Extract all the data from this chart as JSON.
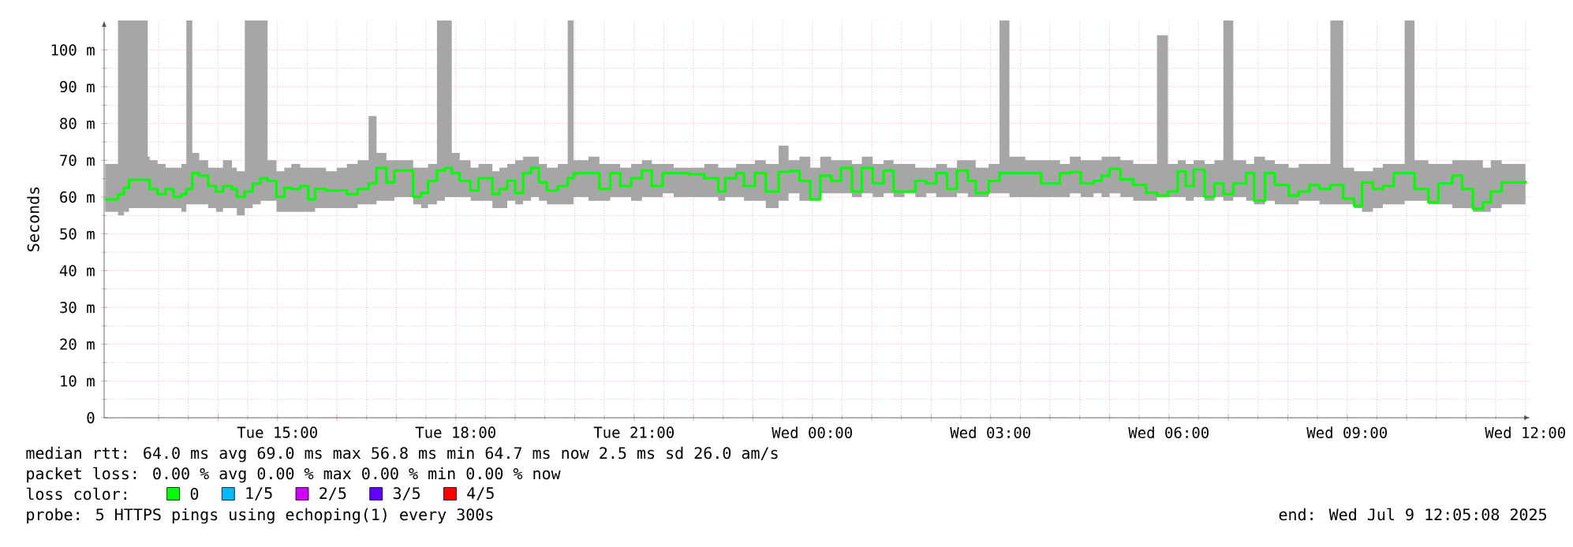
{
  "chart_data": {
    "type": "step",
    "ylabel": "Seconds",
    "legend_title": "loss color:",
    "legend": "bottom",
    "grid": true,
    "xlim": [
      "2025-07-08T12:05",
      "2025-07-09T12:05"
    ],
    "ylim": [
      0,
      108
    ],
    "xticks": [
      {
        "value": "2025-07-08T13:00",
        "label": null
      },
      {
        "value": "2025-07-08T14:00",
        "label": null
      },
      {
        "value": "2025-07-08T15:00",
        "label": "Tue 15:00"
      },
      {
        "value": "2025-07-08T16:00",
        "label": null
      },
      {
        "value": "2025-07-08T17:00",
        "label": null
      },
      {
        "value": "2025-07-08T18:00",
        "label": "Tue 18:00"
      },
      {
        "value": "2025-07-08T19:00",
        "label": null
      },
      {
        "value": "2025-07-08T20:00",
        "label": null
      },
      {
        "value": "2025-07-08T21:00",
        "label": "Tue 21:00"
      },
      {
        "value": "2025-07-08T22:00",
        "label": null
      },
      {
        "value": "2025-07-08T23:00",
        "label": null
      },
      {
        "value": "2025-07-09T00:00",
        "label": "Wed 00:00"
      },
      {
        "value": "2025-07-09T01:00",
        "label": null
      },
      {
        "value": "2025-07-09T02:00",
        "label": null
      },
      {
        "value": "2025-07-09T03:00",
        "label": "Wed 03:00"
      },
      {
        "value": "2025-07-09T04:00",
        "label": null
      },
      {
        "value": "2025-07-09T05:00",
        "label": null
      },
      {
        "value": "2025-07-09T06:00",
        "label": "Wed 06:00"
      },
      {
        "value": "2025-07-09T07:00",
        "label": null
      },
      {
        "value": "2025-07-09T08:00",
        "label": null
      },
      {
        "value": "2025-07-09T09:00",
        "label": "Wed 09:00"
      },
      {
        "value": "2025-07-09T10:00",
        "label": null
      },
      {
        "value": "2025-07-09T11:00",
        "label": null
      },
      {
        "value": "2025-07-09T12:00",
        "label": "Wed 12:00"
      }
    ],
    "yticks": [
      0,
      {
        "value": 10,
        "label": "10 m"
      },
      {
        "value": 20,
        "label": "20 m"
      },
      {
        "value": 30,
        "label": "30 m"
      },
      {
        "value": 40,
        "label": "40 m"
      },
      {
        "value": 50,
        "label": "50 m"
      },
      {
        "value": 60,
        "label": "60 m"
      },
      {
        "value": 70,
        "label": "70 m"
      },
      {
        "value": 80,
        "label": "80 m"
      },
      {
        "value": 90,
        "label": "90 m"
      },
      {
        "value": 100,
        "label": "100 m"
      }
    ],
    "annotations": [
      "median rtt:  64.0 ms avg  69.0 ms max  56.8 ms min  64.7 ms now  2.5 ms sd  26.0   am/s",
      "packet loss: 0.00 % avg  0.00 % max  0.00 % min  0.00 % now",
      "probe:       5 HTTPS pings using echoping(1) every 300s",
      "end: Wed Jul  9 12:05:08 2025"
    ],
    "series": [
      {
        "name": "0",
        "color": "#00ff00",
        "x": [
          "2025-07-08T12:06",
          "2025-07-08T12:19",
          "2025-07-08T12:25",
          "2025-07-08T12:30",
          "2025-07-08T12:49",
          "2025-07-08T12:51",
          "2025-07-08T12:59",
          "2025-07-08T13:07",
          "2025-07-08T13:15",
          "2025-07-08T13:23",
          "2025-07-08T13:28",
          "2025-07-08T13:34",
          "2025-07-08T13:41",
          "2025-07-08T13:50",
          "2025-07-08T13:58",
          "2025-07-08T14:05",
          "2025-07-08T14:14",
          "2025-07-08T14:19",
          "2025-07-08T14:27",
          "2025-07-08T14:35",
          "2025-07-08T14:43",
          "2025-07-08T14:50",
          "2025-07-08T14:59",
          "2025-07-08T15:07",
          "2025-07-08T15:14",
          "2025-07-08T15:23",
          "2025-07-08T15:31",
          "2025-07-08T15:38",
          "2025-07-08T15:49",
          "2025-07-08T16:00",
          "2025-07-08T16:10",
          "2025-07-08T16:21",
          "2025-07-08T16:32",
          "2025-07-08T16:40",
          "2025-07-08T16:50",
          "2025-07-08T16:58",
          "2025-07-08T17:09",
          "2025-07-08T17:17",
          "2025-07-08T17:25",
          "2025-07-08T17:32",
          "2025-07-08T17:41",
          "2025-07-08T17:49",
          "2025-07-08T17:56",
          "2025-07-08T18:04",
          "2025-07-08T18:15",
          "2025-07-08T18:23",
          "2025-07-08T18:37",
          "2025-07-08T18:44",
          "2025-07-08T18:52",
          "2025-07-08T19:00",
          "2025-07-08T19:08",
          "2025-07-08T19:16",
          "2025-07-08T19:24",
          "2025-07-08T19:32",
          "2025-07-08T19:43",
          "2025-07-08T19:53",
          "2025-07-08T19:59",
          "2025-07-08T20:14",
          "2025-07-08T20:25",
          "2025-07-08T20:36",
          "2025-07-08T20:46",
          "2025-07-08T20:57",
          "2025-07-08T21:08",
          "2025-07-08T21:18",
          "2025-07-08T21:29",
          "2025-07-08T21:40",
          "2025-07-08T21:55",
          "2025-07-08T22:11",
          "2025-07-08T22:25",
          "2025-07-08T22:32",
          "2025-07-08T22:43",
          "2025-07-08T22:51",
          "2025-07-08T23:02",
          "2025-07-08T23:13",
          "2025-07-08T23:26",
          "2025-07-08T23:36",
          "2025-07-08T23:47",
          "2025-07-08T23:58",
          "2025-07-09T00:08",
          "2025-07-09T00:19",
          "2025-07-09T00:29",
          "2025-07-09T00:40",
          "2025-07-09T00:50",
          "2025-07-09T01:01",
          "2025-07-09T01:12",
          "2025-07-09T01:22",
          "2025-07-09T01:33",
          "2025-07-09T01:44",
          "2025-07-09T01:55",
          "2025-07-09T02:05",
          "2025-07-09T02:16",
          "2025-07-09T02:26",
          "2025-07-09T02:37",
          "2025-07-09T02:45",
          "2025-07-09T02:58",
          "2025-07-09T03:09",
          "2025-07-09T03:19",
          "2025-07-09T03:35",
          "2025-07-09T03:51",
          "2025-07-09T03:56",
          "2025-07-09T04:10",
          "2025-07-09T04:20",
          "2025-07-09T04:31",
          "2025-07-09T04:44",
          "2025-07-09T04:52",
          "2025-07-09T05:00",
          "2025-07-09T05:11",
          "2025-07-09T05:24",
          "2025-07-09T05:37",
          "2025-07-09T05:48",
          "2025-07-09T05:59",
          "2025-07-09T06:09",
          "2025-07-09T06:17",
          "2025-07-09T06:25",
          "2025-07-09T06:36",
          "2025-07-09T06:46",
          "2025-07-09T06:55",
          "2025-07-09T07:05",
          "2025-07-09T07:18",
          "2025-07-09T07:26",
          "2025-07-09T07:37",
          "2025-07-09T07:47",
          "2025-07-09T08:01",
          "2025-07-09T08:11",
          "2025-07-09T08:22",
          "2025-07-09T08:32",
          "2025-07-09T08:43",
          "2025-07-09T08:56",
          "2025-07-09T09:07",
          "2025-07-09T09:15",
          "2025-07-09T09:26",
          "2025-07-09T09:36",
          "2025-07-09T09:47",
          "2025-07-09T09:58",
          "2025-07-09T10:08",
          "2025-07-09T10:22",
          "2025-07-09T10:32",
          "2025-07-09T10:46",
          "2025-07-09T10:56",
          "2025-07-09T11:07",
          "2025-07-09T11:17",
          "2025-07-09T11:25",
          "2025-07-09T11:36",
          "2025-07-09T11:46",
          "2025-07-09T12:00"
        ],
        "values": [
          59.4,
          60.8,
          62.5,
          64.7,
          64.7,
          62.2,
          60.8,
          62.2,
          60.1,
          60.8,
          62.2,
          66.5,
          65.8,
          63.0,
          61.5,
          63.0,
          62.2,
          60.1,
          61.5,
          63.7,
          65.1,
          64.4,
          60.1,
          62.5,
          62.2,
          63.0,
          59.4,
          62.2,
          61.8,
          61.8,
          60.8,
          62.2,
          63.7,
          67.9,
          64.0,
          67.2,
          67.2,
          60.1,
          61.1,
          64.4,
          67.2,
          67.9,
          66.5,
          64.4,
          61.8,
          65.1,
          60.8,
          62.2,
          64.4,
          61.1,
          66.5,
          67.9,
          64.0,
          61.8,
          63.0,
          65.1,
          66.5,
          66.5,
          62.2,
          66.5,
          63.0,
          65.1,
          67.2,
          63.0,
          66.5,
          66.5,
          66.2,
          65.1,
          61.5,
          65.1,
          66.5,
          63.0,
          66.5,
          61.5,
          66.8,
          67.1,
          64.4,
          59.4,
          65.8,
          64.4,
          67.9,
          61.5,
          67.9,
          63.7,
          67.2,
          61.5,
          61.5,
          64.4,
          63.7,
          66.5,
          62.2,
          67.2,
          64.4,
          61.1,
          64.4,
          66.5,
          66.5,
          66.5,
          63.7,
          63.7,
          66.5,
          66.8,
          63.7,
          64.4,
          65.8,
          67.7,
          64.8,
          63.3,
          61.2,
          60.4,
          61.5,
          67.0,
          63.0,
          67.5,
          60.1,
          63.7,
          60.8,
          63.7,
          66.5,
          59.0,
          66.5,
          63.3,
          60.4,
          61.5,
          63.3,
          62.2,
          63.3,
          59.6,
          57.6,
          64.0,
          62.2,
          63.0,
          66.5,
          66.5,
          62.2,
          58.6,
          63.7,
          65.8,
          62.2,
          56.8,
          58.6,
          61.5,
          64.0,
          64.0,
          64.4
        ],
        "lower": [
          56,
          55,
          56,
          57,
          57,
          57,
          57,
          57,
          57,
          56,
          58,
          58,
          58,
          57,
          56,
          57,
          57,
          55,
          57,
          58,
          59,
          59,
          56,
          56,
          56,
          56,
          56,
          57,
          57,
          57,
          57,
          58,
          58,
          59,
          59,
          60,
          60,
          58,
          57,
          58,
          59,
          60,
          60,
          60,
          59,
          59,
          57,
          57,
          59,
          58,
          59,
          60,
          59,
          58,
          58,
          58,
          60,
          59,
          59,
          60,
          60,
          59,
          60,
          60,
          61,
          60,
          60,
          60,
          59,
          60,
          60,
          59,
          59,
          57,
          59,
          61,
          59,
          59,
          61,
          61,
          61,
          60,
          61,
          60,
          61,
          60,
          61,
          60,
          61,
          60,
          60,
          61,
          60,
          60,
          61,
          61,
          60,
          60,
          60,
          60,
          60,
          61,
          60,
          61,
          60,
          61,
          60,
          59,
          59,
          60,
          60,
          60,
          59,
          60,
          59,
          60,
          59,
          60,
          59,
          58,
          59,
          58,
          58,
          59,
          59,
          58,
          58,
          58,
          57,
          56,
          57,
          58,
          58,
          59,
          59,
          58,
          58,
          57,
          57,
          56,
          56,
          57,
          58,
          58,
          59
        ],
        "upper": [
          69,
          108,
          108,
          108,
          71,
          70,
          69,
          68,
          68,
          69,
          108,
          72,
          70,
          68,
          68,
          70,
          68,
          67,
          108,
          108,
          108,
          70,
          67,
          68,
          69,
          68,
          68,
          68,
          67,
          68,
          69,
          70,
          82,
          72,
          70,
          70,
          70,
          68,
          68,
          69,
          108,
          108,
          72,
          70,
          68,
          69,
          67,
          68,
          69,
          70,
          71,
          71,
          69,
          68,
          69,
          108,
          70,
          71,
          69,
          69,
          68,
          69,
          70,
          69,
          69,
          68,
          68,
          69,
          68,
          68,
          69,
          69,
          70,
          69,
          74,
          70,
          71,
          68,
          71,
          70,
          70,
          69,
          71,
          69,
          70,
          69,
          69,
          68,
          68,
          69,
          68,
          70,
          70,
          68,
          69,
          108,
          71,
          70,
          70,
          70,
          69,
          71,
          70,
          70,
          71,
          71,
          70,
          69,
          69,
          104,
          69,
          70,
          69,
          70,
          69,
          70,
          108,
          70,
          69,
          71,
          70,
          69,
          68,
          69,
          69,
          69,
          108,
          68,
          67,
          67,
          68,
          69,
          69,
          108,
          70,
          69,
          69,
          70,
          70,
          70,
          68,
          70,
          69,
          69,
          68
        ]
      },
      {
        "name": "1/5",
        "color": "#00b8ff"
      },
      {
        "name": "2/5",
        "color": "#d000ff"
      },
      {
        "name": "3/5",
        "color": "#6000ff"
      },
      {
        "name": "4/5",
        "color": "#ff0000"
      }
    ]
  }
}
